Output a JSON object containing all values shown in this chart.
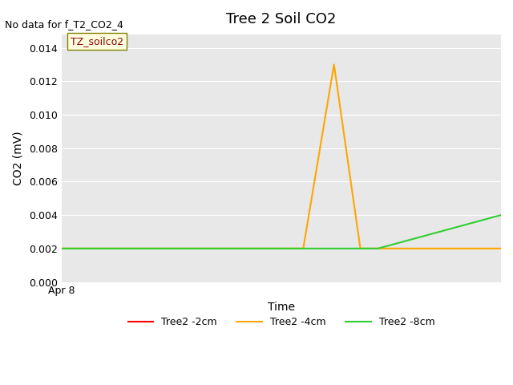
{
  "title": "Tree 2 Soil CO2",
  "no_data_text": "No data for f_T2_CO2_4",
  "annotation_text": "TZ_soilco2",
  "xlabel": "Time",
  "ylabel": "CO2 (mV)",
  "xticklabel": "Apr 8",
  "ylim": [
    0.0,
    0.0148
  ],
  "yticks": [
    0.0,
    0.002,
    0.004,
    0.006,
    0.008,
    0.01,
    0.012,
    0.014
  ],
  "bg_color": "#e8e8e8",
  "fig_color": "#ffffff",
  "series": {
    "orange": {
      "label": "Tree2 -4cm",
      "color": "#FFA500",
      "x": [
        0,
        0.55,
        0.62,
        0.68,
        1.0
      ],
      "y": [
        0.002,
        0.002,
        0.013,
        0.002,
        0.002
      ]
    },
    "green": {
      "label": "Tree2 -8cm",
      "color": "#32CD32",
      "x": [
        0,
        0.72,
        1.0
      ],
      "y": [
        0.002,
        0.002,
        0.004
      ]
    },
    "red": {
      "label": "Tree2 -2cm",
      "color": "#FF0000",
      "x": [],
      "y": []
    }
  }
}
